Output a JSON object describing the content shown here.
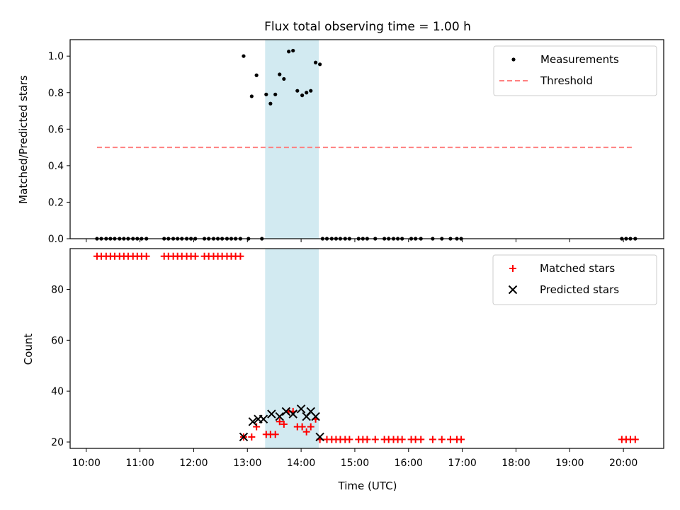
{
  "chart_data": [
    {
      "type": "scatter",
      "title": "Flux total observing time = 1.00 h",
      "xlabel": "",
      "ylabel": "Matched/Predicted stars",
      "xlim": [
        9.7,
        20.75
      ],
      "ylim": [
        0,
        1.09
      ],
      "yticks": [
        "0.0",
        "0.2",
        "0.4",
        "0.6",
        "0.8",
        "1.0"
      ],
      "ytick_values": [
        0,
        0.2,
        0.4,
        0.6,
        0.8,
        1.0
      ],
      "legend": {
        "position": "top-right",
        "entries": [
          "Measurements",
          "Threshold"
        ]
      },
      "shaded_interval": {
        "start": 13.33,
        "end": 14.33,
        "color": "#add8e6"
      },
      "series": [
        {
          "name": "Measurements",
          "marker": "dot",
          "color": "#000000",
          "x": [
            10.2,
            10.28,
            10.37,
            10.45,
            10.53,
            10.62,
            10.7,
            10.78,
            10.87,
            10.95,
            11.03,
            11.12,
            11.45,
            11.53,
            11.62,
            11.7,
            11.78,
            11.87,
            11.95,
            12.03,
            12.2,
            12.28,
            12.37,
            12.45,
            12.53,
            12.62,
            12.7,
            12.78,
            12.87,
            12.93,
            13.02,
            13.08,
            13.17,
            13.27,
            13.35,
            13.43,
            13.52,
            13.6,
            13.68,
            13.77,
            13.85,
            13.93,
            14.02,
            14.1,
            14.18,
            14.27,
            14.35,
            14.4,
            14.48,
            14.57,
            14.65,
            14.73,
            14.82,
            14.9,
            15.07,
            15.15,
            15.23,
            15.38,
            15.55,
            15.63,
            15.72,
            15.8,
            15.88,
            16.05,
            16.13,
            16.23,
            16.45,
            16.62,
            16.78,
            16.9,
            16.98,
            19.97,
            20.05,
            20.13,
            20.22
          ],
          "y": [
            0,
            0,
            0,
            0,
            0,
            0,
            0,
            0,
            0,
            0,
            0,
            0,
            0,
            0,
            0,
            0,
            0,
            0,
            0,
            0,
            0,
            0,
            0,
            0,
            0,
            0,
            0,
            0,
            0,
            1.0,
            0,
            0.78,
            0.895,
            0,
            0.79,
            0.74,
            0.79,
            0.9,
            0.875,
            1.025,
            1.03,
            0.81,
            0.785,
            0.8,
            0.81,
            0.965,
            0.955,
            0,
            0,
            0,
            0,
            0,
            0,
            0,
            0,
            0,
            0,
            0,
            0,
            0,
            0,
            0,
            0,
            0,
            0,
            0,
            0,
            0,
            0,
            0,
            0,
            0,
            0,
            0,
            0
          ]
        },
        {
          "name": "Threshold",
          "style": "dashed",
          "color": "#ff8080",
          "x": [
            10.2,
            20.2
          ],
          "y": [
            0.5,
            0.5
          ]
        }
      ]
    },
    {
      "type": "scatter",
      "title": "",
      "xlabel": "Time (UTC)",
      "ylabel": "Count",
      "xlim": [
        9.7,
        20.75
      ],
      "ylim": [
        17.5,
        96
      ],
      "yticks": [
        "20",
        "40",
        "60",
        "80"
      ],
      "ytick_values": [
        20,
        40,
        60,
        80
      ],
      "xticks": [
        "10:00",
        "11:00",
        "12:00",
        "13:00",
        "14:00",
        "15:00",
        "16:00",
        "17:00",
        "18:00",
        "19:00",
        "20:00"
      ],
      "xtick_values": [
        10,
        11,
        12,
        13,
        14,
        15,
        16,
        17,
        18,
        19,
        20
      ],
      "legend": {
        "position": "top-right",
        "entries": [
          "Matched stars",
          "Predicted stars"
        ]
      },
      "shaded_interval": {
        "start": 13.33,
        "end": 14.33,
        "color": "#add8e6"
      },
      "series": [
        {
          "name": "Matched stars",
          "marker": "plus",
          "color": "#ff0000",
          "x": [
            10.2,
            10.28,
            10.37,
            10.45,
            10.53,
            10.62,
            10.7,
            10.78,
            10.87,
            10.95,
            11.03,
            11.12,
            11.45,
            11.53,
            11.62,
            11.7,
            11.78,
            11.87,
            11.95,
            12.03,
            12.2,
            12.28,
            12.37,
            12.45,
            12.53,
            12.62,
            12.7,
            12.78,
            12.87,
            12.93,
            13.08,
            13.17,
            13.35,
            13.43,
            13.52,
            13.6,
            13.68,
            13.77,
            13.85,
            13.93,
            14.02,
            14.1,
            14.18,
            14.27,
            14.35,
            14.48,
            14.57,
            14.65,
            14.73,
            14.82,
            14.9,
            15.07,
            15.15,
            15.23,
            15.38,
            15.55,
            15.63,
            15.72,
            15.8,
            15.88,
            16.05,
            16.13,
            16.23,
            16.45,
            16.62,
            16.78,
            16.9,
            16.98,
            19.97,
            20.05,
            20.13,
            20.22
          ],
          "y": [
            93,
            93,
            93,
            93,
            93,
            93,
            93,
            93,
            93,
            93,
            93,
            93,
            93,
            93,
            93,
            93,
            93,
            93,
            93,
            93,
            93,
            93,
            93,
            93,
            93,
            93,
            93,
            93,
            93,
            22,
            22,
            26,
            23,
            23,
            23,
            28,
            27,
            32,
            32,
            26,
            26,
            24,
            26,
            29,
            21,
            21,
            21,
            21,
            21,
            21,
            21,
            21,
            21,
            21,
            21,
            21,
            21,
            21,
            21,
            21,
            21,
            21,
            21,
            21,
            21,
            21,
            21,
            21,
            21,
            21,
            21,
            21
          ]
        },
        {
          "name": "Predicted stars",
          "marker": "x",
          "color": "#000000",
          "x": [
            12.93,
            13.1,
            13.2,
            13.3,
            13.45,
            13.6,
            13.72,
            13.85,
            14.0,
            14.1,
            14.18,
            14.27,
            14.35
          ],
          "y": [
            22,
            28,
            29,
            29,
            31,
            30,
            32,
            31,
            33,
            30,
            32,
            30,
            22
          ]
        }
      ]
    }
  ]
}
